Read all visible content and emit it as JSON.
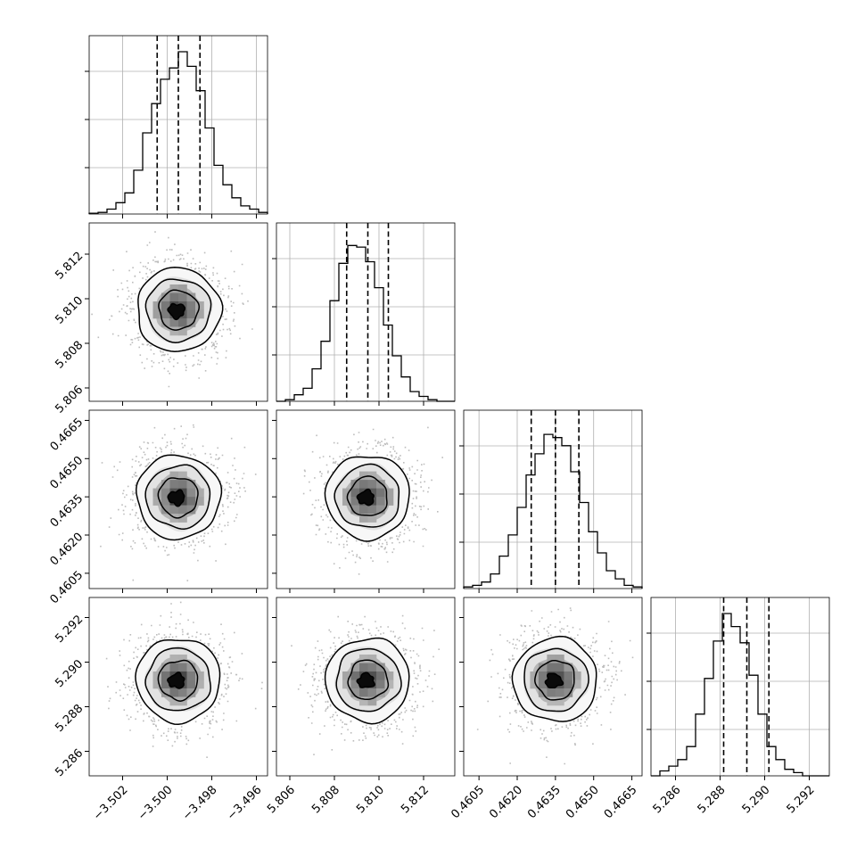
{
  "chart_data": {
    "type": "corner",
    "n_params": 4,
    "params": [
      {
        "median": -3.4995,
        "q16": -3.50045,
        "q84": -3.49853,
        "range": [
          -3.5035,
          -3.4955
        ],
        "ticks": [
          -3.502,
          -3.5,
          -3.498,
          -3.496
        ],
        "tick_labels": [
          "−3.502",
          "−3.500",
          "−3.498",
          "−3.496"
        ]
      },
      {
        "median": 5.8095,
        "q16": 5.80855,
        "q84": 5.81042,
        "range": [
          5.8054,
          5.8134
        ],
        "ticks": [
          5.806,
          5.808,
          5.81,
          5.812
        ],
        "tick_labels": [
          "5.806",
          "5.808",
          "5.810",
          "5.812"
        ]
      },
      {
        "median": 0.4635,
        "q16": 0.46255,
        "q84": 0.46442,
        "range": [
          0.4599,
          0.4669
        ],
        "ticks": [
          0.4605,
          0.462,
          0.4635,
          0.465,
          0.4665
        ],
        "tick_labels": [
          "0.4605",
          "0.4620",
          "0.4635",
          "0.4650",
          "0.4665"
        ]
      },
      {
        "median": 5.2892,
        "q16": 5.28816,
        "q84": 5.29019,
        "range": [
          5.2849,
          5.2929
        ],
        "ticks": [
          5.286,
          5.288,
          5.29,
          5.292
        ],
        "tick_labels": [
          "5.286",
          "5.288",
          "5.290",
          "5.292"
        ]
      }
    ],
    "histograms": [
      [
        0.005,
        0.01,
        0.03,
        0.07,
        0.13,
        0.27,
        0.5,
        0.68,
        0.83,
        0.9,
        1.0,
        0.91,
        0.76,
        0.53,
        0.3,
        0.18,
        0.1,
        0.05,
        0.03,
        0.01
      ],
      [
        0.0,
        0.01,
        0.04,
        0.08,
        0.2,
        0.37,
        0.62,
        0.85,
        0.96,
        0.95,
        0.86,
        0.7,
        0.47,
        0.28,
        0.15,
        0.06,
        0.03,
        0.01,
        0.0,
        0.0
      ],
      [
        0.01,
        0.02,
        0.04,
        0.09,
        0.2,
        0.33,
        0.5,
        0.7,
        0.83,
        0.95,
        0.93,
        0.88,
        0.72,
        0.53,
        0.35,
        0.22,
        0.11,
        0.06,
        0.02,
        0.01
      ],
      [
        0.0,
        0.03,
        0.06,
        0.1,
        0.18,
        0.38,
        0.6,
        0.83,
        1.0,
        0.92,
        0.82,
        0.62,
        0.38,
        0.18,
        0.1,
        0.04,
        0.02,
        0.0,
        0.0,
        0.0
      ]
    ],
    "contour_levels": [
      "0.5-sigma",
      "1-sigma",
      "1.5-sigma",
      "2-sigma"
    ],
    "quantile_lines": "dashed (16th, 50th, 84th percentiles)",
    "grid": true,
    "axis_labels": []
  }
}
